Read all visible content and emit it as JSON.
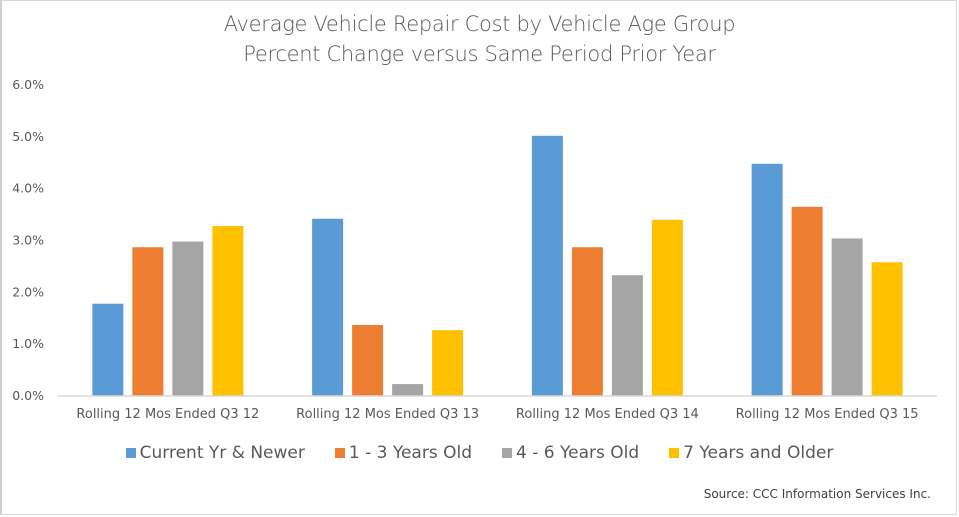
{
  "chart_data": {
    "type": "bar",
    "title": "Average Vehicle Repair Cost by Vehicle Age Group",
    "subtitle": "Percent Change versus Same Period Prior Year",
    "xlabel": "",
    "ylabel": "",
    "ylim": [
      0,
      6.0
    ],
    "yticks": [
      0,
      1,
      2,
      3,
      4,
      5,
      6
    ],
    "ytick_labels": [
      "0.0%",
      "1.0%",
      "2.0%",
      "3.0%",
      "4.0%",
      "5.0%",
      "6.0%"
    ],
    "grid": false,
    "legend_position": "bottom",
    "categories": [
      "Rolling 12 Mos Ended Q3 12",
      "Rolling 12 Mos Ended Q3 13",
      "Rolling 12 Mos Ended Q3 14",
      "Rolling 12 Mos Ended Q3 15"
    ],
    "series": [
      {
        "name": "Current Yr & Newer",
        "color": "#5b9bd5",
        "values": [
          1.78,
          3.42,
          5.02,
          4.48
        ]
      },
      {
        "name": "1 - 3 Years Old",
        "color": "#ed7d31",
        "values": [
          2.87,
          1.37,
          2.87,
          3.65
        ]
      },
      {
        "name": "4 - 6 Years Old",
        "color": "#a5a5a5",
        "values": [
          2.98,
          0.23,
          2.33,
          3.04
        ]
      },
      {
        "name": "7 Years and Older",
        "color": "#ffc000",
        "values": [
          3.28,
          1.27,
          3.4,
          2.58
        ]
      }
    ],
    "annotation": "Source: CCC Information Services Inc."
  }
}
